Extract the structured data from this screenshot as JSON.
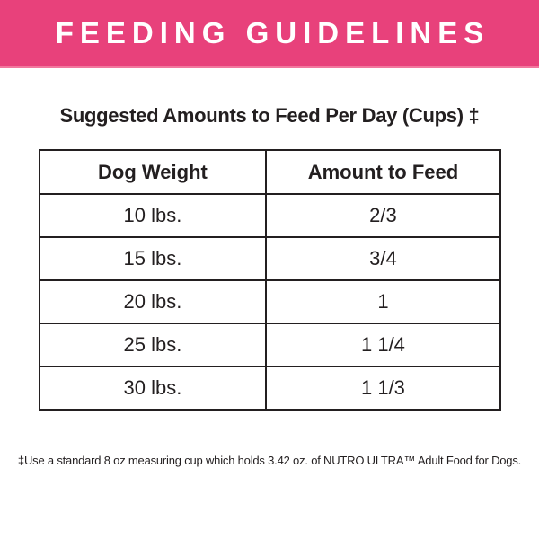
{
  "banner": {
    "title": "FEEDING GUIDELINES",
    "bg_color": "#e8417b",
    "text_color": "#ffffff"
  },
  "section": {
    "title": "Suggested Amounts to Feed Per Day (Cups) ‡"
  },
  "table": {
    "columns": [
      "Dog Weight",
      "Amount to Feed"
    ],
    "rows": [
      [
        "10 lbs.",
        "2/3"
      ],
      [
        "15 lbs.",
        "3/4"
      ],
      [
        "20 lbs.",
        "1"
      ],
      [
        "25 lbs.",
        "1 1/4"
      ],
      [
        "30 lbs.",
        "1 1/3"
      ]
    ],
    "border_color": "#231f20"
  },
  "footnote": {
    "text": "‡Use a standard 8 oz measuring cup which holds 3.42 oz. of NUTRO ULTRA™ Adult Food for Dogs."
  }
}
